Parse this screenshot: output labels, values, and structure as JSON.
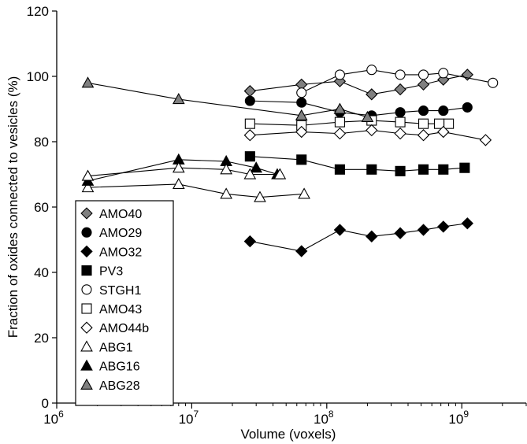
{
  "chart_data": {
    "type": "scatter",
    "xlabel": "Volume (voxels)",
    "ylabel": "Fraction of oxides connected to vesicles (%)",
    "xscale": "log",
    "xlim": [
      1000000,
      3000000000
    ],
    "ylim": [
      0,
      120
    ],
    "xticks": [
      {
        "value": 1000000,
        "base": "10",
        "exp": "6"
      },
      {
        "value": 10000000,
        "base": "10",
        "exp": "7"
      },
      {
        "value": 100000000,
        "base": "10",
        "exp": "8"
      },
      {
        "value": 1000000000,
        "base": "10",
        "exp": "9"
      }
    ],
    "yticks": [
      0,
      20,
      40,
      60,
      80,
      100,
      120
    ],
    "grid": false,
    "legend_position": "bottom-left",
    "series": [
      {
        "name": "AMO40",
        "marker": "diamond",
        "fill": "#808080",
        "x": [
          27000000,
          65000000,
          125000000,
          215000000,
          350000000,
          520000000,
          730000000,
          1100000000
        ],
        "y": [
          95.5,
          97.5,
          98.5,
          94.5,
          96,
          97.5,
          99,
          100.5
        ]
      },
      {
        "name": "AMO29",
        "marker": "circle",
        "fill": "#000000",
        "x": [
          27000000,
          65000000,
          125000000,
          215000000,
          350000000,
          520000000,
          730000000,
          1100000000
        ],
        "y": [
          92.5,
          92,
          89,
          88,
          89,
          89.5,
          89.5,
          90.5
        ]
      },
      {
        "name": "AMO32",
        "marker": "diamond",
        "fill": "#000000",
        "x": [
          27000000,
          65000000,
          125000000,
          215000000,
          350000000,
          520000000,
          730000000,
          1100000000
        ],
        "y": [
          49.5,
          46.5,
          53,
          51,
          52,
          53,
          54,
          55
        ]
      },
      {
        "name": "PV3",
        "marker": "square",
        "fill": "#000000",
        "x": [
          27000000,
          65000000,
          125000000,
          215000000,
          350000000,
          520000000,
          730000000,
          1050000000
        ],
        "y": [
          75.5,
          74.5,
          71.5,
          71.5,
          71,
          71.5,
          71.5,
          72
        ]
      },
      {
        "name": "STGH1",
        "marker": "circle",
        "fill": "#ffffff",
        "x": [
          65000000,
          125000000,
          215000000,
          350000000,
          520000000,
          730000000,
          1700000000
        ],
        "y": [
          95,
          100.5,
          102,
          100.5,
          100.5,
          101,
          98
        ]
      },
      {
        "name": "AMO43",
        "marker": "square",
        "fill": "#ffffff",
        "x": [
          27000000,
          65000000,
          125000000,
          215000000,
          350000000,
          520000000,
          680000000,
          800000000
        ],
        "y": [
          85.5,
          85,
          86,
          86.5,
          86,
          85.5,
          85.5,
          85.5
        ]
      },
      {
        "name": "AMO44b",
        "marker": "diamond",
        "fill": "#ffffff",
        "x": [
          27000000,
          65000000,
          125000000,
          215000000,
          350000000,
          520000000,
          730000000,
          1500000000
        ],
        "y": [
          82,
          83,
          82.5,
          83.5,
          82.5,
          82,
          83,
          80.5
        ]
      },
      {
        "name": "ABG1",
        "marker": "triangle",
        "fill": "#ffffff",
        "x": [
          1700000,
          8000000,
          18000000,
          32000000,
          68000000
        ],
        "y": [
          66,
          67,
          64,
          63,
          64
        ]
      },
      {
        "name": "ABG16",
        "marker": "triangle",
        "fill": "#000000",
        "x": [
          1700000,
          8000000,
          18000000,
          30000000,
          43000000
        ],
        "y": [
          68,
          74.5,
          74,
          72,
          70
        ]
      },
      {
        "name": "ABG28",
        "marker": "triangle",
        "fill": "#808080",
        "x": [
          1700000,
          8000000,
          65000000,
          125000000,
          200000000
        ],
        "y": [
          98,
          93,
          88,
          90,
          87.5
        ]
      },
      {
        "name": "",
        "marker": "triangle",
        "fill": "#ffffff",
        "x": [
          1700000,
          8000000,
          18000000,
          27000000,
          45000000
        ],
        "y": [
          69.5,
          72,
          71.5,
          70,
          70
        ]
      }
    ]
  }
}
